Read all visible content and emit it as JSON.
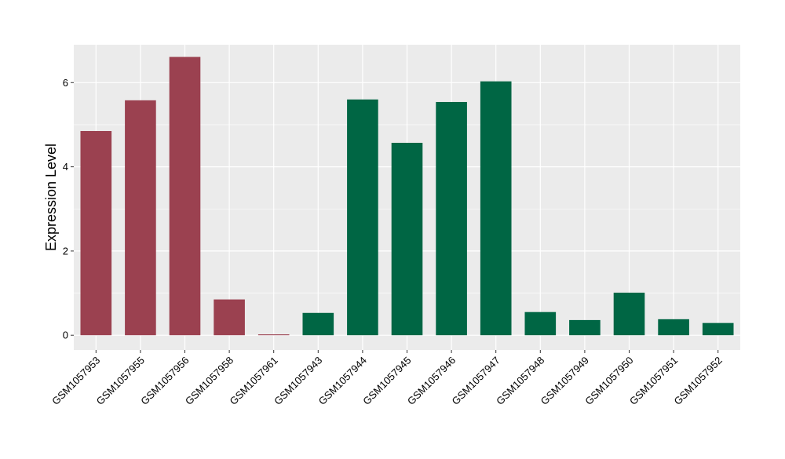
{
  "chart_data": {
    "type": "bar",
    "title": "",
    "xlabel": "",
    "ylabel": "Expression Level",
    "ylim": [
      -0.35,
      6.9
    ],
    "yticks": [
      0,
      2,
      4,
      6
    ],
    "grid": true,
    "legend": "none",
    "categories": [
      "GSM1057953",
      "GSM1057955",
      "GSM1057956",
      "GSM1057958",
      "GSM1057961",
      "GSM1057943",
      "GSM1057944",
      "GSM1057945",
      "GSM1057946",
      "GSM1057947",
      "GSM1057948",
      "GSM1057949",
      "GSM1057950",
      "GSM1057951",
      "GSM1057952"
    ],
    "values": [
      4.85,
      5.58,
      6.61,
      0.85,
      0.02,
      0.53,
      5.6,
      4.57,
      5.54,
      6.03,
      0.55,
      0.36,
      1.01,
      0.38,
      0.29
    ],
    "groups": [
      "red",
      "red",
      "red",
      "red",
      "red",
      "green",
      "green",
      "green",
      "green",
      "green",
      "green",
      "green",
      "green",
      "green",
      "green"
    ],
    "colors": {
      "red": "#9b4150",
      "green": "#006644",
      "panel": "#ebebeb",
      "grid": "#ffffff"
    }
  }
}
